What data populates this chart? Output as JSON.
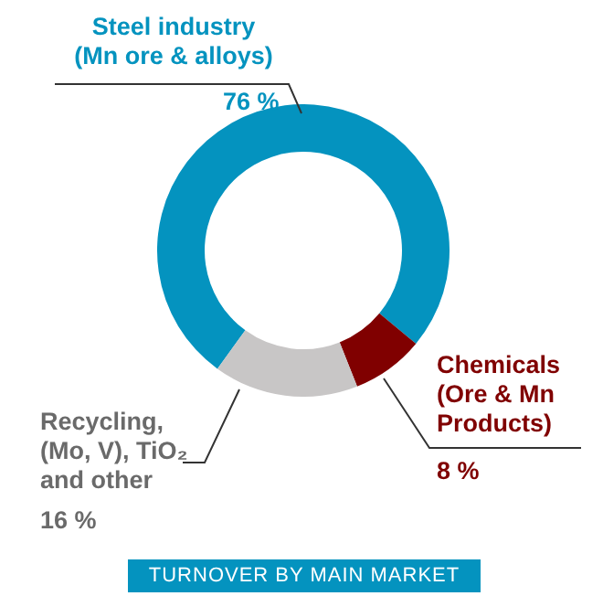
{
  "chart_data": {
    "type": "donut",
    "title": "TURNOVER BY MAIN MARKET",
    "categories": [
      "Steel industry (Mn ore & alloys)",
      "Chemicals (Ore & Mn Products)",
      "Recycling, (Mo, V), TiO₂ and other"
    ],
    "values": [
      76,
      8,
      16
    ],
    "colors": [
      "#0493bf",
      "#800000",
      "#c8c6c6"
    ],
    "value_labels": [
      "76 %",
      "8 %",
      "16 %"
    ]
  }
}
